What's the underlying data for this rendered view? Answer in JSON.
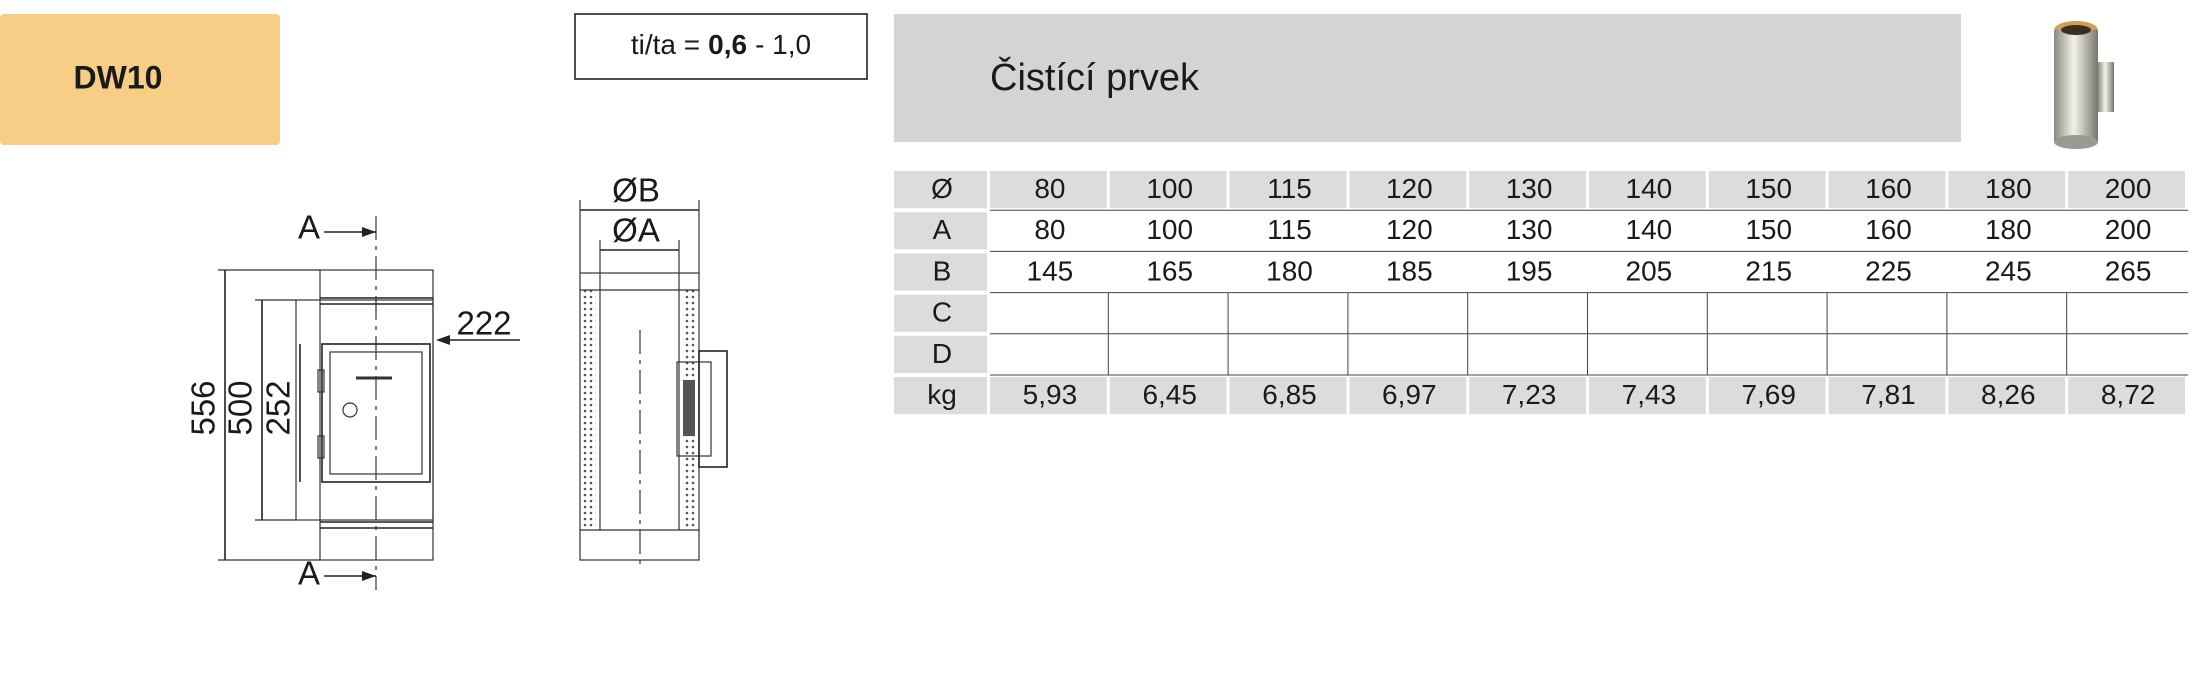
{
  "badge": "DW10",
  "ratio": {
    "prefix": "ti/ta =",
    "bold": "0,6",
    "suffix": "- 1,0"
  },
  "title": "Čistící prvek",
  "drawing": {
    "front_section_top": "A",
    "front_section_bottom": "A",
    "height_total": "556",
    "height_pipe": "500",
    "height_door": "252",
    "door_offset": "222",
    "outer_diameter": "ØB",
    "inner_diameter": "ØA"
  },
  "table": {
    "header": {
      "label": "Ø",
      "cells": [
        "80",
        "100",
        "115",
        "120",
        "130",
        "140",
        "150",
        "160",
        "180",
        "200"
      ]
    },
    "rows": [
      {
        "label": "A",
        "cells": [
          "80",
          "100",
          "115",
          "120",
          "130",
          "140",
          "150",
          "160",
          "180",
          "200"
        ]
      },
      {
        "label": "B",
        "cells": [
          "145",
          "165",
          "180",
          "185",
          "195",
          "205",
          "215",
          "225",
          "245",
          "265"
        ]
      },
      {
        "label": "C"
      },
      {
        "label": "D"
      },
      {
        "label": "kg",
        "cells": [
          "5,93",
          "6,45",
          "6,85",
          "6,97",
          "7,23",
          "7,43",
          "7,69",
          "7,81",
          "8,26",
          "8,72"
        ]
      }
    ]
  }
}
